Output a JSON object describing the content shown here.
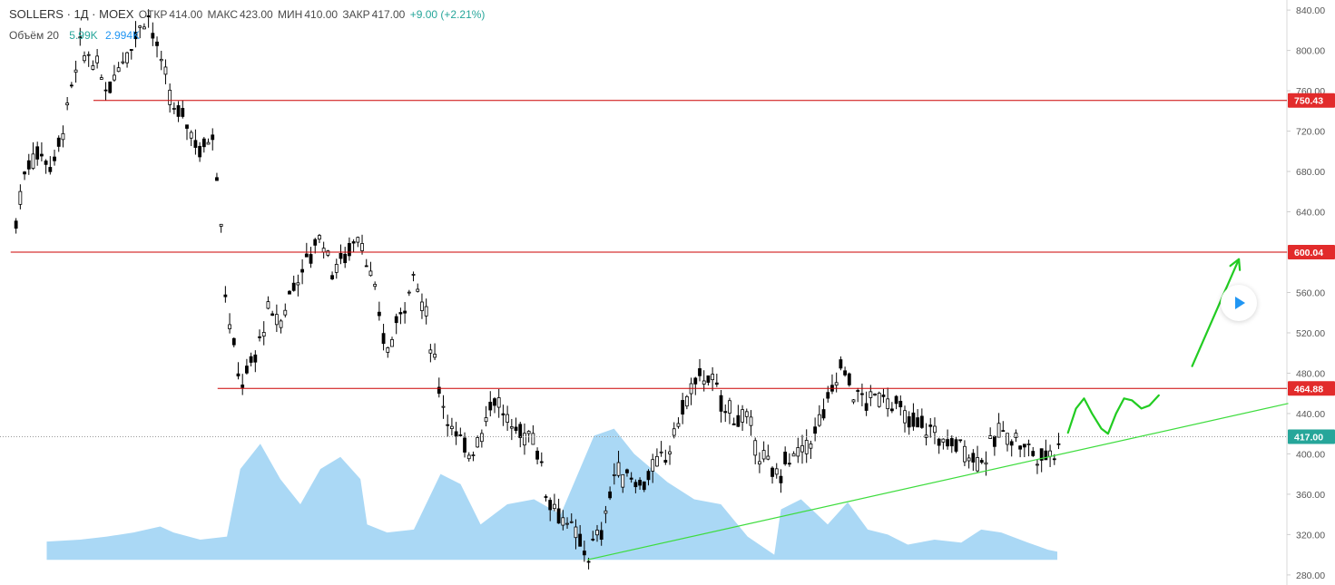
{
  "header": {
    "symbol": "SOLLERS · 1Д · MOEX",
    "open_label": "ОТКР",
    "open": "414.00",
    "high_label": "МАКС",
    "high": "423.00",
    "low_label": "МИН",
    "low": "410.00",
    "close_label": "ЗАКР",
    "close": "417.00",
    "change": "+9.00 (+2.21%)"
  },
  "volume_legend": {
    "label": "Объём 20",
    "value1": "5.99K",
    "value2": "2.994K"
  },
  "colors": {
    "candles": "#000000",
    "level_line": "#cc0000",
    "trend_line": "#3ddc3d",
    "projection": "#22cc22",
    "volume_fill": "#8ecbf2",
    "label_red": "#e22b2b",
    "label_green": "#26a69a",
    "axis_text": "#555555"
  },
  "play_button_icon": "play-icon",
  "chart_data": {
    "type": "candlestick",
    "y_axis": {
      "min": 270,
      "max": 850,
      "side": "right",
      "ticks": [
        "280.00",
        "320.00",
        "360.00",
        "400.00",
        "440.00",
        "480.00",
        "520.00",
        "560.00",
        "600.00",
        "640.00",
        "680.00",
        "720.00",
        "760.00",
        "800.00",
        "840.00"
      ]
    },
    "price_labels": [
      {
        "value": 750.43,
        "text": "750.43",
        "kind": "level"
      },
      {
        "value": 600.04,
        "text": "600.04",
        "kind": "level"
      },
      {
        "value": 464.88,
        "text": "464.88",
        "kind": "level"
      },
      {
        "value": 417.0,
        "text": "417.00",
        "kind": "last"
      }
    ],
    "horizontal_levels": [
      750.43,
      600.04,
      464.88
    ],
    "last_price": 417.0,
    "trend_line": {
      "from": [
        0.44,
        295
      ],
      "to": [
        0.965,
        450
      ]
    },
    "price_path": [
      [
        0.012,
        630
      ],
      [
        0.02,
        690
      ],
      [
        0.03,
        700
      ],
      [
        0.04,
        685
      ],
      [
        0.05,
        740
      ],
      [
        0.06,
        800
      ],
      [
        0.07,
        790
      ],
      [
        0.08,
        760
      ],
      [
        0.09,
        790
      ],
      [
        0.1,
        810
      ],
      [
        0.11,
        840
      ],
      [
        0.12,
        790
      ],
      [
        0.13,
        740
      ],
      [
        0.14,
        730
      ],
      [
        0.15,
        700
      ],
      [
        0.16,
        720
      ],
      [
        0.165,
        640
      ],
      [
        0.17,
        540
      ],
      [
        0.18,
        470
      ],
      [
        0.19,
        490
      ],
      [
        0.2,
        540
      ],
      [
        0.21,
        530
      ],
      [
        0.22,
        570
      ],
      [
        0.23,
        590
      ],
      [
        0.24,
        620
      ],
      [
        0.25,
        580
      ],
      [
        0.26,
        600
      ],
      [
        0.27,
        620
      ],
      [
        0.28,
        560
      ],
      [
        0.29,
        500
      ],
      [
        0.3,
        540
      ],
      [
        0.31,
        580
      ],
      [
        0.32,
        530
      ],
      [
        0.33,
        460
      ],
      [
        0.34,
        420
      ],
      [
        0.35,
        400
      ],
      [
        0.36,
        420
      ],
      [
        0.37,
        460
      ],
      [
        0.38,
        430
      ],
      [
        0.39,
        420
      ],
      [
        0.4,
        420
      ],
      [
        0.41,
        360
      ],
      [
        0.42,
        340
      ],
      [
        0.43,
        320
      ],
      [
        0.44,
        300
      ],
      [
        0.45,
        320
      ],
      [
        0.46,
        380
      ],
      [
        0.47,
        380
      ],
      [
        0.48,
        370
      ],
      [
        0.49,
        385
      ],
      [
        0.5,
        400
      ],
      [
        0.51,
        440
      ],
      [
        0.52,
        470
      ],
      [
        0.53,
        480
      ],
      [
        0.54,
        450
      ],
      [
        0.55,
        440
      ],
      [
        0.56,
        430
      ],
      [
        0.57,
        400
      ],
      [
        0.58,
        375
      ],
      [
        0.59,
        395
      ],
      [
        0.6,
        400
      ],
      [
        0.61,
        420
      ],
      [
        0.62,
        450
      ],
      [
        0.63,
        490
      ],
      [
        0.64,
        460
      ],
      [
        0.65,
        450
      ],
      [
        0.66,
        460
      ],
      [
        0.67,
        450
      ],
      [
        0.68,
        430
      ],
      [
        0.69,
        430
      ],
      [
        0.7,
        420
      ],
      [
        0.71,
        410
      ],
      [
        0.72,
        410
      ],
      [
        0.73,
        395
      ],
      [
        0.74,
        400
      ],
      [
        0.75,
        425
      ],
      [
        0.76,
        415
      ],
      [
        0.77,
        405
      ],
      [
        0.78,
        395
      ],
      [
        0.79,
        405
      ],
      [
        0.793,
        417
      ]
    ],
    "volume_profile": [
      [
        0.035,
        313
      ],
      [
        0.06,
        315
      ],
      [
        0.08,
        318
      ],
      [
        0.1,
        322
      ],
      [
        0.12,
        328
      ],
      [
        0.13,
        322
      ],
      [
        0.15,
        315
      ],
      [
        0.17,
        318
      ],
      [
        0.18,
        385
      ],
      [
        0.195,
        410
      ],
      [
        0.21,
        375
      ],
      [
        0.225,
        350
      ],
      [
        0.24,
        385
      ],
      [
        0.255,
        397
      ],
      [
        0.27,
        375
      ],
      [
        0.275,
        330
      ],
      [
        0.29,
        322
      ],
      [
        0.31,
        325
      ],
      [
        0.33,
        380
      ],
      [
        0.345,
        370
      ],
      [
        0.36,
        330
      ],
      [
        0.38,
        350
      ],
      [
        0.4,
        355
      ],
      [
        0.42,
        340
      ],
      [
        0.445,
        418
      ],
      [
        0.46,
        425
      ],
      [
        0.475,
        400
      ],
      [
        0.5,
        372
      ],
      [
        0.52,
        355
      ],
      [
        0.54,
        350
      ],
      [
        0.56,
        318
      ],
      [
        0.58,
        300
      ],
      [
        0.585,
        345
      ],
      [
        0.6,
        355
      ],
      [
        0.62,
        330
      ],
      [
        0.635,
        352
      ],
      [
        0.65,
        325
      ],
      [
        0.665,
        320
      ],
      [
        0.68,
        310
      ],
      [
        0.7,
        315
      ],
      [
        0.72,
        312
      ],
      [
        0.735,
        325
      ],
      [
        0.75,
        322
      ],
      [
        0.77,
        312
      ],
      [
        0.785,
        305
      ],
      [
        0.792,
        303
      ]
    ],
    "projection_zigzag": [
      [
        0.8,
        421
      ],
      [
        0.806,
        445
      ],
      [
        0.812,
        455
      ],
      [
        0.818,
        440
      ],
      [
        0.825,
        425
      ],
      [
        0.83,
        420
      ],
      [
        0.836,
        440
      ],
      [
        0.842,
        455
      ],
      [
        0.848,
        453
      ],
      [
        0.855,
        445
      ],
      [
        0.861,
        448
      ],
      [
        0.868,
        458
      ]
    ],
    "projection_arrow": {
      "from": [
        0.893,
        487
      ],
      "to": [
        0.928,
        593
      ]
    }
  }
}
